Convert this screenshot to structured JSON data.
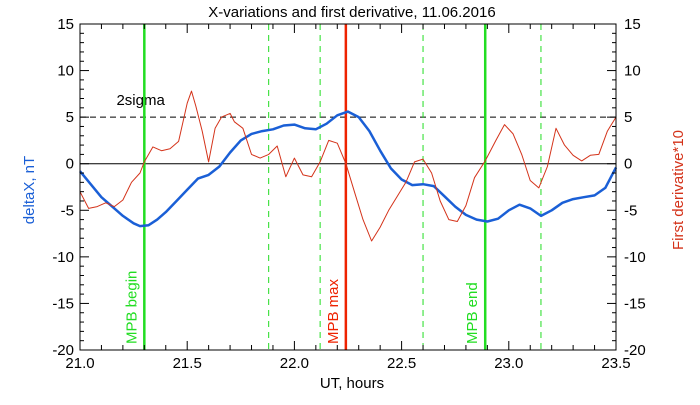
{
  "chart_data": {
    "type": "line",
    "title": "X-variations and first derivative, 11.06.2016",
    "xlabel": "UT, hours",
    "ylabel_left": "deltaX, nT",
    "ylabel_right": "First derivative*10",
    "xlim": [
      21.0,
      23.5
    ],
    "ylim": [
      -20,
      15
    ],
    "x_ticks": [
      "21.0",
      "21.5",
      "22.0",
      "22.5",
      "23.0",
      "23.5"
    ],
    "y_ticks": [
      "15",
      "10",
      "5",
      "0",
      "-5",
      "-10",
      "-15",
      "-20"
    ],
    "x_tick_values": [
      21.0,
      21.5,
      22.0,
      22.5,
      23.0,
      23.5
    ],
    "y_tick_values": [
      15,
      10,
      5,
      0,
      -5,
      -10,
      -15,
      -20
    ],
    "threshold": {
      "label": "2sigma",
      "value": 5
    },
    "zero_line": 0,
    "markers": [
      {
        "label": "MPB begin",
        "x": 21.3,
        "color": "#22dd22",
        "style": "solid"
      },
      {
        "label": "MPB max",
        "x": 22.24,
        "color": "#ee2200",
        "style": "solid"
      },
      {
        "label": "MPB end",
        "x": 22.89,
        "color": "#22dd22",
        "style": "solid"
      }
    ],
    "dashed_markers": [
      21.88,
      22.12,
      22.6,
      23.15
    ],
    "series": [
      {
        "name": "deltaX",
        "color": "#1a5fd6",
        "x": [
          21.0,
          21.05,
          21.1,
          21.15,
          21.2,
          21.25,
          21.28,
          21.32,
          21.36,
          21.4,
          21.45,
          21.5,
          21.55,
          21.6,
          21.65,
          21.7,
          21.75,
          21.8,
          21.85,
          21.9,
          21.95,
          22.0,
          22.05,
          22.1,
          22.15,
          22.2,
          22.25,
          22.3,
          22.35,
          22.4,
          22.45,
          22.5,
          22.55,
          22.6,
          22.65,
          22.7,
          22.75,
          22.8,
          22.85,
          22.9,
          22.95,
          23.0,
          23.05,
          23.1,
          23.15,
          23.2,
          23.25,
          23.3,
          23.35,
          23.4,
          23.45,
          23.5
        ],
        "values": [
          -0.8,
          -2.2,
          -3.6,
          -4.6,
          -5.6,
          -6.4,
          -6.7,
          -6.6,
          -6.0,
          -5.2,
          -4.0,
          -2.8,
          -1.6,
          -1.2,
          -0.3,
          1.2,
          2.5,
          3.2,
          3.5,
          3.7,
          4.1,
          4.2,
          3.8,
          3.7,
          4.3,
          5.2,
          5.6,
          5.0,
          3.5,
          1.4,
          -0.5,
          -1.7,
          -2.3,
          -2.2,
          -2.4,
          -3.5,
          -4.6,
          -5.5,
          -6.0,
          -6.2,
          -5.9,
          -5.0,
          -4.4,
          -4.8,
          -5.6,
          -5.0,
          -4.2,
          -3.8,
          -3.6,
          -3.4,
          -2.6,
          -0.4
        ]
      },
      {
        "name": "First derivative*10",
        "color": "#d4331a",
        "x": [
          21.0,
          21.04,
          21.08,
          21.12,
          21.16,
          21.2,
          21.24,
          21.28,
          21.3,
          21.34,
          21.38,
          21.42,
          21.46,
          21.5,
          21.52,
          21.54,
          21.57,
          21.6,
          21.63,
          21.66,
          21.7,
          21.72,
          21.76,
          21.8,
          21.84,
          21.88,
          21.92,
          21.96,
          22.0,
          22.04,
          22.08,
          22.12,
          22.16,
          22.2,
          22.24,
          22.28,
          22.32,
          22.36,
          22.4,
          22.44,
          22.48,
          22.52,
          22.56,
          22.6,
          22.64,
          22.68,
          22.72,
          22.76,
          22.8,
          22.84,
          22.89,
          22.94,
          22.98,
          23.02,
          23.06,
          23.1,
          23.14,
          23.18,
          23.22,
          23.26,
          23.3,
          23.34,
          23.38,
          23.42,
          23.46,
          23.5
        ],
        "values": [
          -3.0,
          -4.8,
          -4.6,
          -4.2,
          -4.6,
          -3.9,
          -2.0,
          -1.0,
          0.2,
          1.8,
          1.4,
          1.6,
          2.4,
          6.5,
          7.8,
          6.2,
          3.5,
          0.2,
          3.8,
          5.0,
          5.4,
          4.5,
          3.8,
          1.0,
          0.6,
          1.0,
          1.9,
          -1.4,
          0.6,
          -1.2,
          -1.4,
          0.2,
          2.5,
          2.2,
          0.0,
          -3.0,
          -6.0,
          -8.3,
          -6.8,
          -5.0,
          -3.5,
          -2.0,
          0.2,
          0.5,
          -1.0,
          -4.0,
          -6.0,
          -6.2,
          -4.5,
          -1.5,
          0.3,
          2.5,
          4.2,
          3.2,
          1.0,
          -1.8,
          -2.6,
          -0.3,
          3.8,
          2.0,
          0.9,
          0.3,
          0.9,
          1.0,
          3.5,
          5.0
        ]
      }
    ]
  }
}
